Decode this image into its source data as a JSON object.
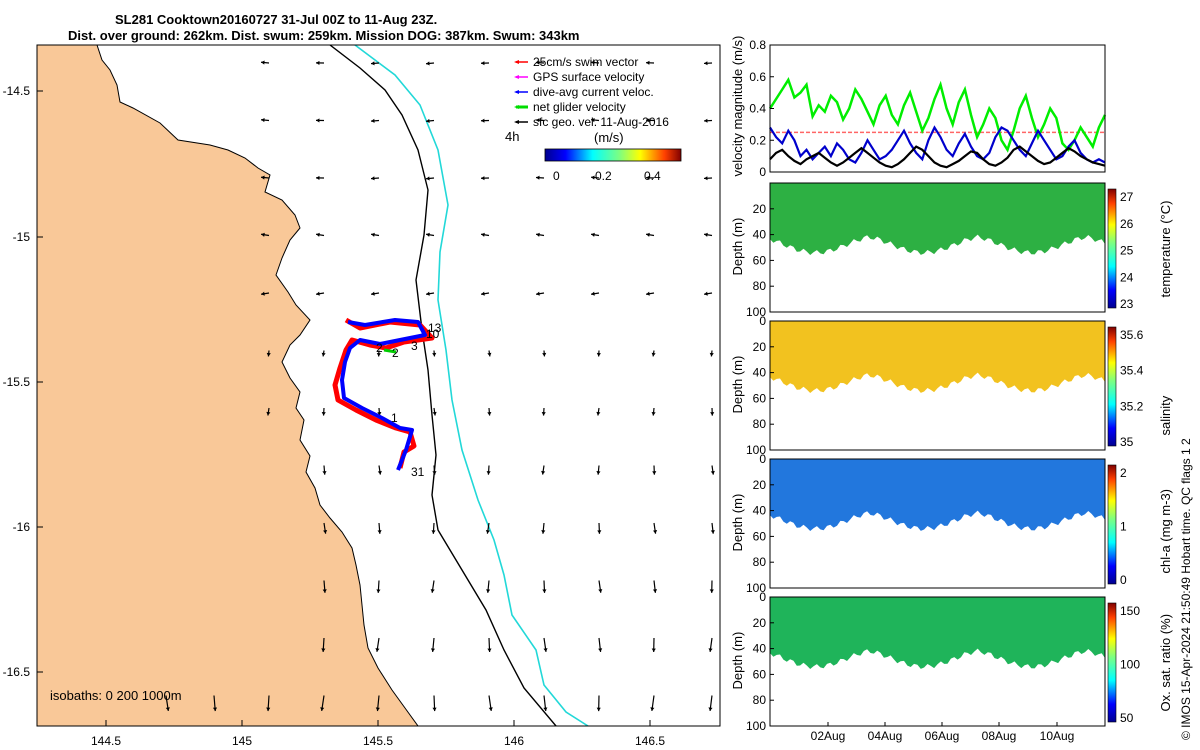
{
  "title": {
    "line1": "SL281 Cooktown20160727 31-Jul 00Z to 11-Aug 23Z.",
    "line2": "Dist. over ground: 262km. Dist. swum: 259km. Mission DOG: 387km. Swum: 343km"
  },
  "map": {
    "lon_ticks": [
      "144.5",
      "145",
      "145.5",
      "146",
      "146.5"
    ],
    "lat_ticks": [
      "-14.5",
      "-15",
      "-15.5",
      "-16",
      "-16.5"
    ],
    "isobaths_label": "isobaths: 0   200  1000m",
    "colors": {
      "land": "#F9C898",
      "isobath_200": "#000000",
      "isobath_1000": "#22D8D8",
      "track": "#ff0000",
      "dive_avg": "#0000ff",
      "net": "#00dd00"
    },
    "legend": [
      {
        "label": "25cm/s swim vector",
        "color": "#ff0000"
      },
      {
        "label": "GPS surface velocity",
        "color": "#ff00ff"
      },
      {
        "label": "dive-avg current veloc.",
        "color": "#0000ff"
      },
      {
        "label": "net glider velocity",
        "color": "#00dd00"
      },
      {
        "label": "sfc geo. vel. 11-Aug-2016",
        "color": "#000000"
      }
    ],
    "colorbar_unit": "(m/s)",
    "colorbar_ticks": [
      "0",
      "0.2",
      "0.4"
    ],
    "age_label": "4h",
    "track_day_labels": [
      "13",
      "10",
      "3",
      "2",
      "2",
      "1",
      "31"
    ]
  },
  "chart_data": [
    {
      "type": "line",
      "ylabel": "velocity magnitude (m/s)",
      "ylim": [
        0,
        0.8
      ],
      "yticks": [
        "0",
        "0.2",
        "0.4",
        "0.6",
        "0.8"
      ],
      "reference_line": {
        "value": 0.25,
        "color": "#ff6666"
      },
      "series": [
        {
          "color": "#00ee00",
          "values": [
            0.4,
            0.46,
            0.52,
            0.58,
            0.47,
            0.5,
            0.55,
            0.35,
            0.42,
            0.38,
            0.48,
            0.44,
            0.33,
            0.4,
            0.52,
            0.46,
            0.38,
            0.3,
            0.42,
            0.48,
            0.36,
            0.3,
            0.42,
            0.5,
            0.38,
            0.26,
            0.34,
            0.46,
            0.55,
            0.4,
            0.3,
            0.44,
            0.52,
            0.36,
            0.22,
            0.3,
            0.4,
            0.34,
            0.2,
            0.14,
            0.26,
            0.4,
            0.48,
            0.34,
            0.22,
            0.3,
            0.4,
            0.34,
            0.18,
            0.14,
            0.2,
            0.28,
            0.22,
            0.16,
            0.28,
            0.36
          ]
        },
        {
          "color": "#0000cc",
          "values": [
            0.28,
            0.22,
            0.18,
            0.26,
            0.2,
            0.1,
            0.14,
            0.08,
            0.12,
            0.16,
            0.1,
            0.18,
            0.14,
            0.08,
            0.06,
            0.12,
            0.2,
            0.14,
            0.08,
            0.1,
            0.14,
            0.2,
            0.26,
            0.18,
            0.12,
            0.08,
            0.2,
            0.28,
            0.22,
            0.14,
            0.1,
            0.18,
            0.24,
            0.16,
            0.1,
            0.08,
            0.12,
            0.22,
            0.28,
            0.26,
            0.2,
            0.14,
            0.1,
            0.18,
            0.26,
            0.2,
            0.14,
            0.08,
            0.1,
            0.16,
            0.2,
            0.12,
            0.08,
            0.06,
            0.08,
            0.06
          ]
        },
        {
          "color": "#000000",
          "values": [
            0.08,
            0.12,
            0.14,
            0.1,
            0.07,
            0.05,
            0.08,
            0.1,
            0.12,
            0.09,
            0.06,
            0.04,
            0.06,
            0.09,
            0.12,
            0.15,
            0.12,
            0.09,
            0.06,
            0.04,
            0.03,
            0.05,
            0.08,
            0.12,
            0.16,
            0.14,
            0.1,
            0.06,
            0.04,
            0.03,
            0.05,
            0.07,
            0.1,
            0.13,
            0.12,
            0.08,
            0.05,
            0.04,
            0.06,
            0.09,
            0.14,
            0.16,
            0.13,
            0.1,
            0.07,
            0.05,
            0.06,
            0.09,
            0.12,
            0.15,
            0.13,
            0.1,
            0.08,
            0.06,
            0.05,
            0.04
          ]
        }
      ]
    },
    {
      "type": "heatmap",
      "ylabel": "Depth (m)",
      "clabel": "temperature (°C)",
      "cticks": [
        "23",
        "24",
        "25",
        "26",
        "27"
      ],
      "yticks": [
        "0",
        "20",
        "40",
        "60",
        "80",
        "100"
      ],
      "color": "#2db043"
    },
    {
      "type": "heatmap",
      "ylabel": "Depth (m)",
      "clabel": "salinity",
      "cticks": [
        "35",
        "35.2",
        "35.4",
        "35.6"
      ],
      "yticks": [
        "0",
        "20",
        "40",
        "60",
        "80",
        "100"
      ],
      "color": "#f2c21f"
    },
    {
      "type": "heatmap",
      "ylabel": "Depth (m)",
      "clabel": "chl-a (mg m-3)",
      "cticks": [
        "0",
        "1",
        "2"
      ],
      "yticks": [
        "0",
        "20",
        "40",
        "60",
        "80",
        "100"
      ],
      "color": "#2277dd"
    },
    {
      "type": "heatmap",
      "ylabel": "Depth (m)",
      "clabel": "Ox. sat. ratio (%)",
      "cticks": [
        "50",
        "100",
        "150"
      ],
      "yticks": [
        "0",
        "20",
        "40",
        "60",
        "80",
        "100"
      ],
      "color": "#1fb45a",
      "xticks": [
        "02Aug",
        "04Aug",
        "06Aug",
        "08Aug",
        "10Aug"
      ]
    }
  ],
  "footer_credit": "© IMOS 15-Apr-2024 21:50:49 Hobart time. QC flags 1  2"
}
